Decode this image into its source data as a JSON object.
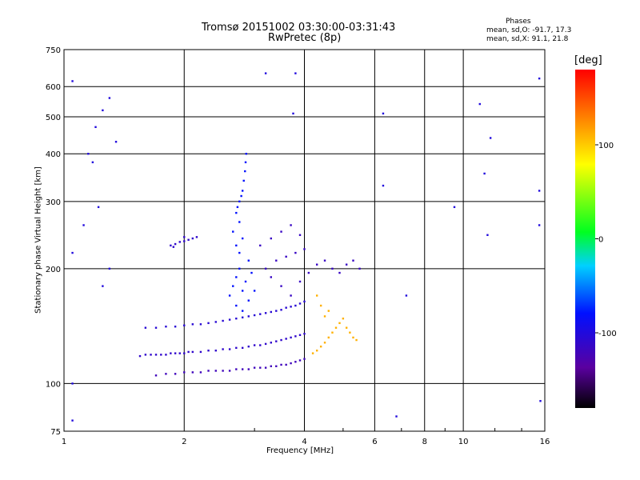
{
  "colors": {
    "grid": "#000000",
    "background": "#ffffff"
  },
  "chart_data": {
    "type": "scatter",
    "title": "Tromsø 20151002 03:30:00-03:31:43",
    "subtitle": "RwPretec (8p)",
    "xlabel": "Frequency [MHz]",
    "ylabel": "Stationary phase Virtual Height [km]",
    "x_scale": "log",
    "y_scale": "log",
    "xlim": [
      1,
      16
    ],
    "ylim": [
      75,
      750
    ],
    "x_ticks": [
      1,
      2,
      4,
      6,
      8,
      10,
      16
    ],
    "x_tick_labels": [
      "1",
      "2",
      "4",
      "6",
      "8",
      "10",
      "16"
    ],
    "y_ticks": [
      75,
      100,
      200,
      300,
      400,
      500,
      600,
      750
    ],
    "y_tick_labels": [
      "75",
      "100",
      "200",
      "300",
      "400",
      "500",
      "600",
      "750"
    ],
    "grid": true,
    "stats": {
      "heading": "Phases",
      "line_o": "mean, sd,O: -91.7, 17.3",
      "line_x": "mean, sd,X:  91.1, 21.8"
    },
    "colorbar": {
      "label": "[deg]",
      "range": [
        -180,
        180
      ],
      "ticks": [
        100,
        0,
        -100
      ],
      "tick_labels": [
        "100",
        "0",
        "-100"
      ]
    },
    "series": [
      {
        "description_key": "o-mode-lower-trace",
        "points": [
          [
            1.55,
            118
          ],
          [
            1.6,
            119
          ],
          [
            1.65,
            119
          ],
          [
            1.7,
            119
          ],
          [
            1.75,
            119
          ],
          [
            1.8,
            119
          ],
          [
            1.85,
            120
          ],
          [
            1.9,
            120
          ],
          [
            1.95,
            120
          ],
          [
            2.0,
            120
          ],
          [
            2.05,
            121
          ],
          [
            2.1,
            121
          ],
          [
            2.2,
            121
          ],
          [
            2.3,
            122
          ],
          [
            2.4,
            122
          ],
          [
            2.5,
            123
          ],
          [
            2.6,
            123
          ],
          [
            2.7,
            124
          ],
          [
            2.8,
            124
          ],
          [
            2.9,
            125
          ],
          [
            3.0,
            126
          ],
          [
            3.1,
            126
          ],
          [
            3.2,
            127
          ],
          [
            3.3,
            128
          ],
          [
            3.4,
            129
          ],
          [
            3.5,
            130
          ],
          [
            3.6,
            131
          ],
          [
            3.7,
            132
          ],
          [
            3.8,
            133
          ],
          [
            3.9,
            134
          ],
          [
            4.0,
            135
          ]
        ],
        "phase": -110
      },
      {
        "description_key": "o-mode-bottom-trace",
        "points": [
          [
            1.7,
            105
          ],
          [
            1.8,
            106
          ],
          [
            1.9,
            106
          ],
          [
            2.0,
            107
          ],
          [
            2.1,
            107
          ],
          [
            2.2,
            107
          ],
          [
            2.3,
            108
          ],
          [
            2.4,
            108
          ],
          [
            2.5,
            108
          ],
          [
            2.6,
            108
          ],
          [
            2.7,
            109
          ],
          [
            2.8,
            109
          ],
          [
            2.9,
            109
          ],
          [
            3.0,
            110
          ],
          [
            3.1,
            110
          ],
          [
            3.2,
            110
          ],
          [
            3.3,
            111
          ],
          [
            3.4,
            111
          ],
          [
            3.5,
            112
          ],
          [
            3.6,
            112
          ],
          [
            3.7,
            113
          ],
          [
            3.8,
            114
          ],
          [
            3.9,
            115
          ],
          [
            4.0,
            116
          ]
        ],
        "phase": -120
      },
      {
        "description_key": "x-mode-trace",
        "points": [
          [
            1.6,
            140
          ],
          [
            1.7,
            140
          ],
          [
            1.8,
            141
          ],
          [
            1.9,
            141
          ],
          [
            2.0,
            142
          ],
          [
            2.1,
            143
          ],
          [
            2.2,
            143
          ],
          [
            2.3,
            144
          ],
          [
            2.4,
            145
          ],
          [
            2.5,
            146
          ],
          [
            2.6,
            147
          ],
          [
            2.7,
            148
          ],
          [
            2.8,
            149
          ],
          [
            2.9,
            150
          ],
          [
            3.0,
            151
          ],
          [
            3.1,
            152
          ],
          [
            3.2,
            153
          ],
          [
            3.3,
            154
          ],
          [
            3.4,
            155
          ],
          [
            3.5,
            156
          ],
          [
            3.6,
            158
          ],
          [
            3.7,
            159
          ],
          [
            3.8,
            160
          ],
          [
            3.9,
            162
          ],
          [
            4.0,
            164
          ]
        ],
        "phase": -105
      },
      {
        "description_key": "spread-f-scatter",
        "points": [
          [
            2.6,
            170
          ],
          [
            2.65,
            180
          ],
          [
            2.7,
            190
          ],
          [
            2.75,
            200
          ],
          [
            2.8,
            175
          ],
          [
            2.85,
            185
          ],
          [
            2.9,
            165
          ],
          [
            2.95,
            195
          ],
          [
            3.0,
            175
          ],
          [
            2.7,
            160
          ],
          [
            2.8,
            155
          ],
          [
            2.9,
            210
          ],
          [
            2.75,
            220
          ],
          [
            2.7,
            230
          ],
          [
            2.8,
            240
          ],
          [
            2.65,
            250
          ],
          [
            2.75,
            265
          ],
          [
            2.7,
            280
          ],
          [
            2.72,
            290
          ],
          [
            2.75,
            300
          ],
          [
            2.78,
            310
          ],
          [
            2.8,
            320
          ],
          [
            2.82,
            340
          ],
          [
            2.84,
            360
          ],
          [
            2.85,
            380
          ],
          [
            2.86,
            400
          ]
        ],
        "phase": -80
      },
      {
        "description_key": "upper-scatter",
        "points": [
          [
            3.2,
            200
          ],
          [
            3.4,
            210
          ],
          [
            3.6,
            215
          ],
          [
            3.8,
            220
          ],
          [
            4.0,
            225
          ],
          [
            3.3,
            240
          ],
          [
            3.5,
            250
          ],
          [
            3.7,
            260
          ],
          [
            3.9,
            245
          ],
          [
            3.1,
            230
          ],
          [
            3.3,
            190
          ],
          [
            3.5,
            180
          ],
          [
            3.7,
            170
          ],
          [
            3.9,
            185
          ],
          [
            4.1,
            195
          ],
          [
            4.3,
            205
          ],
          [
            4.5,
            210
          ],
          [
            4.7,
            200
          ],
          [
            4.9,
            195
          ],
          [
            5.1,
            205
          ],
          [
            5.3,
            210
          ],
          [
            5.5,
            200
          ]
        ],
        "phase": -115
      },
      {
        "description_key": "high-freq-x-echoes",
        "points": [
          [
            4.2,
            120
          ],
          [
            4.3,
            122
          ],
          [
            4.4,
            125
          ],
          [
            4.5,
            128
          ],
          [
            4.6,
            132
          ],
          [
            4.7,
            136
          ],
          [
            4.8,
            140
          ],
          [
            4.9,
            144
          ],
          [
            5.0,
            148
          ],
          [
            5.1,
            140
          ],
          [
            5.2,
            136
          ],
          [
            5.3,
            132
          ],
          [
            5.4,
            130
          ],
          [
            4.5,
            150
          ],
          [
            4.6,
            155
          ],
          [
            4.4,
            160
          ],
          [
            4.3,
            170
          ]
        ],
        "phase": 110
      },
      {
        "description_key": "early-echo-cluster",
        "points": [
          [
            1.85,
            230
          ],
          [
            1.9,
            232
          ],
          [
            1.95,
            235
          ],
          [
            2.0,
            236
          ],
          [
            2.05,
            238
          ],
          [
            2.1,
            240
          ],
          [
            2.15,
            242
          ],
          [
            1.88,
            228
          ],
          [
            2.0,
            242
          ]
        ],
        "phase": -110
      },
      {
        "description_key": "isolated-points",
        "points": [
          [
            1.05,
            620
          ],
          [
            1.05,
            80
          ],
          [
            1.05,
            100
          ],
          [
            1.05,
            220
          ],
          [
            1.2,
            470
          ],
          [
            1.25,
            520
          ],
          [
            1.3,
            560
          ],
          [
            1.35,
            430
          ],
          [
            1.15,
            400
          ],
          [
            1.18,
            380
          ],
          [
            1.22,
            290
          ],
          [
            1.12,
            260
          ],
          [
            1.3,
            200
          ],
          [
            1.25,
            180
          ],
          [
            3.2,
            650
          ],
          [
            3.8,
            650
          ],
          [
            3.75,
            510
          ],
          [
            6.3,
            510
          ],
          [
            6.3,
            330
          ],
          [
            6.8,
            82
          ],
          [
            7.2,
            170
          ],
          [
            9.5,
            290
          ],
          [
            11.0,
            540
          ],
          [
            11.7,
            440
          ],
          [
            11.3,
            355
          ],
          [
            11.5,
            245
          ],
          [
            15.5,
            320
          ],
          [
            15.5,
            260
          ],
          [
            15.5,
            630
          ],
          [
            15.6,
            90
          ]
        ],
        "phase": -100
      }
    ]
  }
}
